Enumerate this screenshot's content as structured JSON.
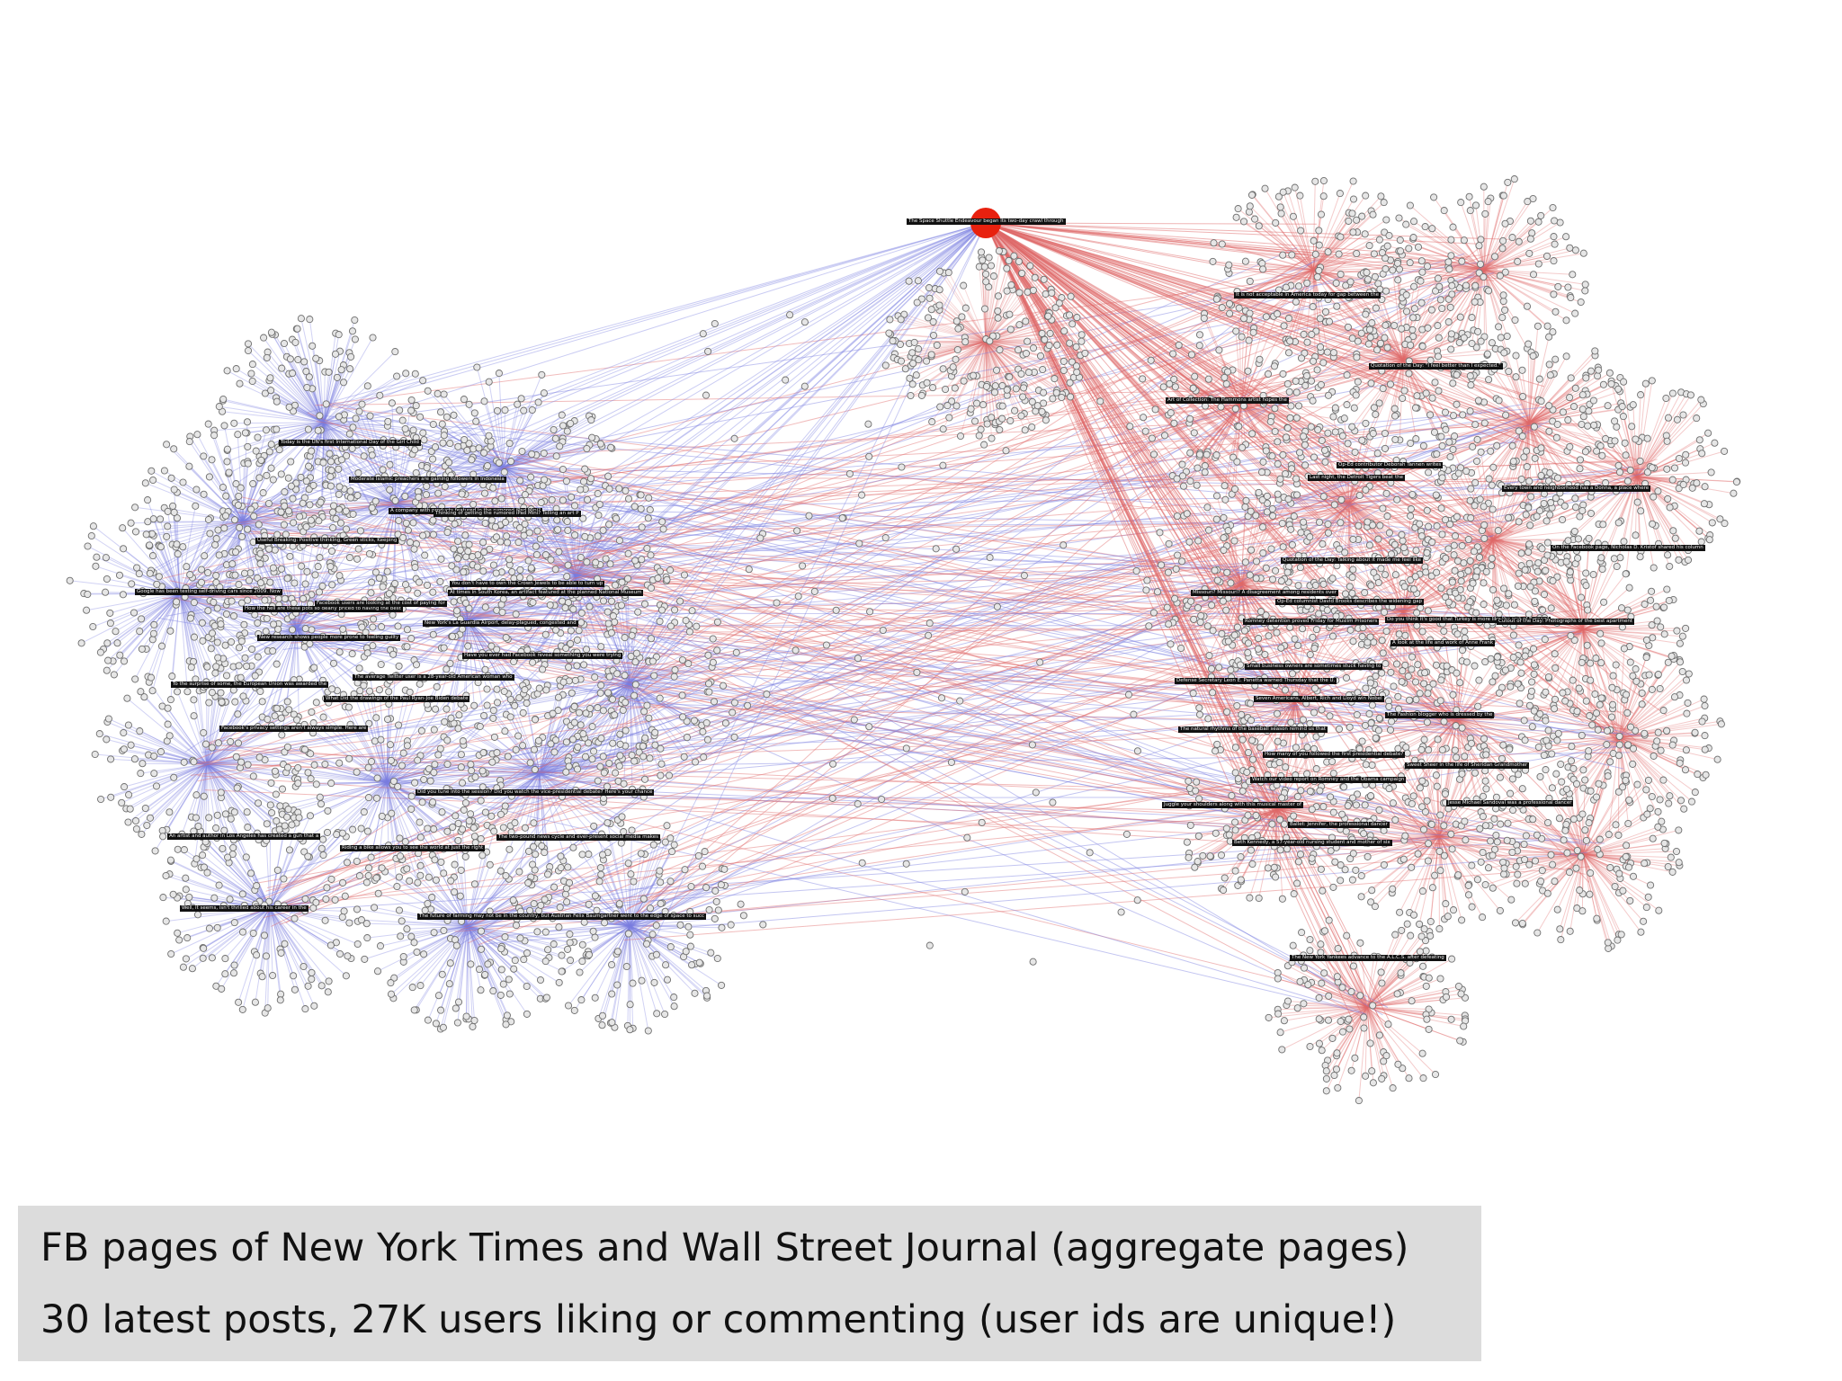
{
  "caption": {
    "line1": "FB pages of New York Times and Wall Street Journal (aggregate pages)",
    "line2": "30 latest posts, 27K users liking or commenting (user ids are unique!)"
  },
  "colors": {
    "background": "#ffffff",
    "nyt_edges": "#7b7fe0",
    "wsj_edges": "#e06a6a",
    "node_fill": "#e6e6e6",
    "node_stroke": "#6f6f6f",
    "highlight_node": "#e8210f",
    "label_bg": "#111111",
    "caption_bg": "#dcdcdc"
  },
  "network": {
    "highlighted_post": "The Space Shuttle Endeavour began its two-day crawl through",
    "blue_post_labels": [
      "Today is the UN's first International Day of the Girl Child",
      "Moderate Islamic preachers are gaining followers in Indonesia",
      "A company with products featured in the rumored iPad Mini?",
      "Thinking of getting the rumored iPad Mini? Telling an art P",
      "Useful Breaking: Positive thinking, Green sticks, Keeping",
      "Google has been testing self-driving cars since 2009. Now",
      "You don't have to own the Crown Jewels to be able to turn up",
      "How the hell are these pots so dearly priced to having the best",
      "At times in South Korea, an artifact featured at the planned National Museum",
      "Facebook users are looking at the cost of paying for",
      "New York's La Guardia Airport, delay-plagued, congested and",
      "New research shows people more prone to feeling guilty",
      "Have you ever had Facebook reveal something you were trying",
      "The average Twitter user is a 28-year-old American woman who",
      "To the surprise of some, the European Union was awarded the",
      "What Did the drawings of the Paul Ryan-Joe Biden debate",
      "Facebook's privacy settings aren't always simple. Here are",
      "Did you tune into the session? Did you watch the vice-presidential debate? Here's your chance",
      "An artist and author in Los Angeles has created a gun that a",
      "The two-pound news cycle and ever-present social media makes",
      "Riding a bike allows you to see the world at just the right",
      "Well, it seems, isn't thrilled about his career in the",
      "The future of farming may not be in the country, but Austrian Felix Baumgartner went to the edge of space to succ"
    ],
    "red_post_labels": [
      "It is not acceptable in America today for gap between the",
      "Quotation of the Day: \"I feel better than I expected.\"",
      "Art of Collection: The Hammons artist hopes the",
      "Op-Ed contributor Deborah Tannen writes",
      "Last night, the Detroit Tigers beat the",
      "Every town and neighborhood has a Donna, a place where",
      "On the Facebook page, Nicholas D. Kristof shared his column",
      "Quotation of the Day: Talking about it made me feel like",
      "Missouri? Missouri? A disagreement among residents over",
      "Op-Ed columnist David Brooks describes the widening gap",
      "Do you think it's good that Turkey is more like the rest of Europe?",
      "Romney detention proved Friday for Muslim Prisoners",
      "Cutout of the Day: Photographs of the best apartment",
      "A look at the life and work of Anne Frank",
      "Small business owners are sometimes stuck having to",
      "Defense Secretary Leon E. Panetta warned Thursday that the U.",
      "Seven Americans, Albert, Rich and Lloyd win Nobel",
      "The Fashion blogger who is dressed by the",
      "The natural rhythms of the baseball season remind us that",
      "How many of you followed the first presidential debate?",
      "Sweet Sheer in the life of Sheridan Grandmother",
      "Watch our video report on Romney and the Obama campaign",
      "Juggle your shoulders along with this musical master of",
      "Ballet: Jennifer, the professional dancer",
      "Jesse Michael Sandoval was a professional dancer",
      "Beth Kennedy, a 57-year-old nursing student and mother of six",
      "The New York Yankees advance to the A.L.C.S. after defeating"
    ]
  }
}
